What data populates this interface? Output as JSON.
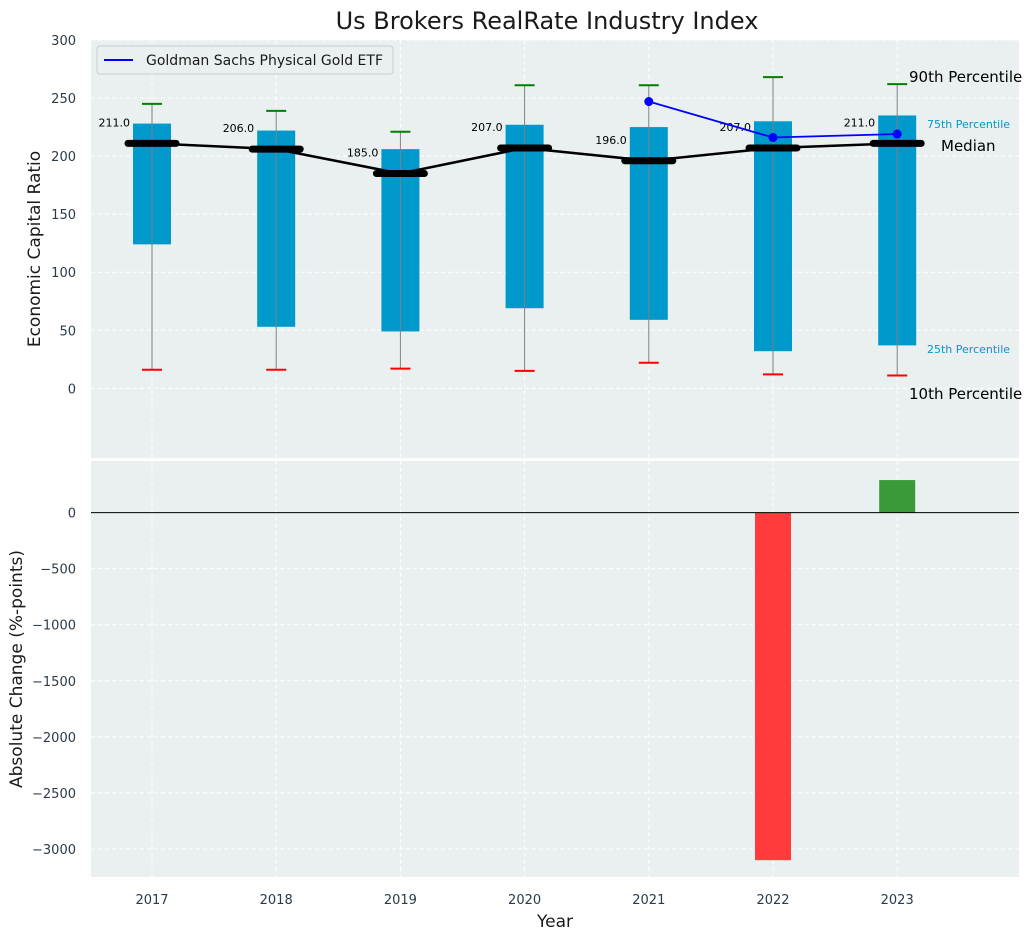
{
  "chart_data": [
    {
      "type": "box",
      "title": "Us Brokers RealRate Industry Index",
      "ylabel": "Economic Capital Ratio",
      "ylim": [
        -60,
        300
      ],
      "yticks": [
        0,
        50,
        100,
        150,
        200,
        250,
        300
      ],
      "grid": true,
      "categories": [
        "2017",
        "2018",
        "2019",
        "2020",
        "2021",
        "2022",
        "2023"
      ],
      "p10": [
        16,
        16,
        17,
        15,
        22,
        12,
        11
      ],
      "p25": [
        124,
        53,
        49,
        69,
        59,
        32,
        37
      ],
      "median": [
        211,
        206,
        185,
        207,
        196,
        207,
        211
      ],
      "p75": [
        228,
        222,
        206,
        227,
        225,
        230,
        235
      ],
      "p90": [
        245,
        239,
        221,
        261,
        261,
        268,
        262
      ],
      "median_labels": [
        "211.0",
        "206.0",
        "185.0",
        "207.0",
        "196.0",
        "207.0",
        "211.0"
      ],
      "series": [
        {
          "name": "Goldman Sachs Physical Gold ETF",
          "color": "#0000ff",
          "x": [
            "2021",
            "2022",
            "2023"
          ],
          "values": [
            247,
            216,
            219
          ]
        }
      ],
      "legend_position": "top-left",
      "annotations": {
        "p90": "90th Percentile",
        "p75": "75th Percentile",
        "median": "Median",
        "p25": "25th Percentile",
        "p10": "10th Percentile"
      },
      "colors": {
        "box": "#0099cc",
        "median": "#000000",
        "p90_cap": "#008000",
        "p10_cap": "#ff0000",
        "whisker": "#808080",
        "background": "#eaeff0"
      }
    },
    {
      "type": "bar",
      "xlabel": "Year",
      "ylabel": "Absolute Change (%-points)",
      "ylim": [
        -3250,
        460
      ],
      "yticks": [
        0,
        -500,
        -1000,
        -1500,
        -2000,
        -2500,
        -3000
      ],
      "grid": true,
      "categories": [
        "2017",
        "2018",
        "2019",
        "2020",
        "2021",
        "2022",
        "2023"
      ],
      "values": [
        null,
        null,
        null,
        null,
        null,
        -3100,
        290
      ],
      "colors": {
        "positive": "#3a9a3a",
        "negative": "#ff3b3b"
      }
    }
  ]
}
